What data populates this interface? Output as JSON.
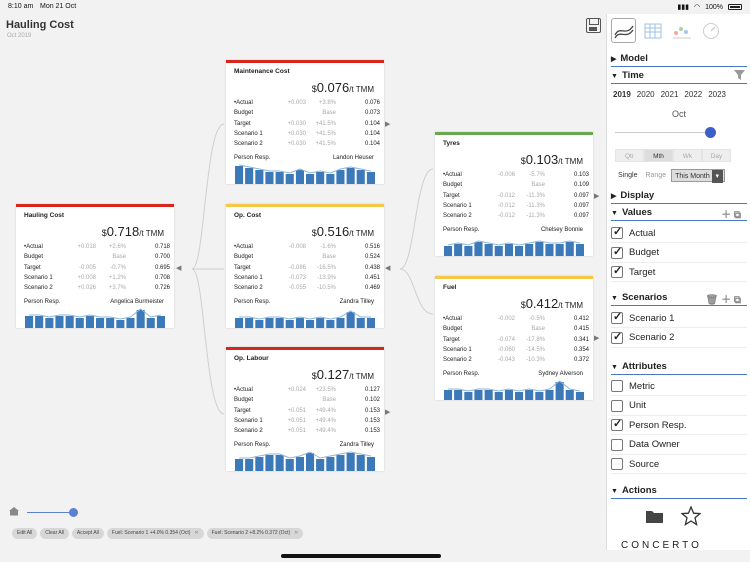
{
  "status": {
    "time": "8:10 am",
    "date": "Mon 21 Oct",
    "battery": "100%"
  },
  "header": {
    "title": "Hauling Cost",
    "subtitle": "Oct 2019"
  },
  "colors": {
    "red": "#d9261c",
    "yellow": "#f5c84a",
    "green": "#6aa84f",
    "spark": "#3b79b8",
    "accent": "#4a78c8"
  },
  "cards": [
    {
      "id": "hauling",
      "name": "Hauling Cost",
      "cur": "$",
      "value": "0.718",
      "unit": "/t TMM",
      "color": "#d9261c",
      "rows": [
        {
          "label": "Actual",
          "d1": "+0.018",
          "d2": "+2.6%",
          "v": "0.718"
        },
        {
          "label": "Budget",
          "d1": "",
          "d2": "Base",
          "v": "0.700"
        },
        {
          "label": "Target",
          "d1": "-0.005",
          "d2": "-0.7%",
          "v": "0.695"
        },
        {
          "label": "Scenario 1",
          "d1": "+0.008",
          "d2": "+1.2%",
          "v": "0.708"
        },
        {
          "label": "Scenario 2",
          "d1": "+0.026",
          "d2": "+3.7%",
          "v": "0.726"
        }
      ],
      "resp_label": "Person Resp.",
      "resp": "Angelica Burmeister",
      "spark": [
        6,
        6,
        5,
        6,
        6,
        5,
        6,
        5,
        5,
        4,
        5,
        9,
        5,
        6
      ]
    },
    {
      "id": "maintenance",
      "name": "Maintenance Cost",
      "cur": "$",
      "value": "0.076",
      "unit": "/t TMM",
      "color": "#d9261c",
      "rows": [
        {
          "label": "Actual",
          "d1": "+0.003",
          "d2": "+3.8%",
          "v": "0.076"
        },
        {
          "label": "Budget",
          "d1": "",
          "d2": "Base",
          "v": "0.073"
        },
        {
          "label": "Target",
          "d1": "+0.030",
          "d2": "+41.5%",
          "v": "0.104"
        },
        {
          "label": "Scenario 1",
          "d1": "+0.030",
          "d2": "+41.5%",
          "v": "0.104"
        },
        {
          "label": "Scenario 2",
          "d1": "+0.030",
          "d2": "+41.5%",
          "v": "0.104"
        }
      ],
      "resp_label": "Person Resp.",
      "resp": "Landon Heuser",
      "spark": [
        9,
        8,
        7,
        6,
        6,
        5,
        7,
        5,
        6,
        5,
        7,
        8,
        7,
        6
      ]
    },
    {
      "id": "opcost",
      "name": "Op. Cost",
      "cur": "$",
      "value": "0.516",
      "unit": "/t TMM",
      "color": "#f5c84a",
      "rows": [
        {
          "label": "Actual",
          "d1": "-0.008",
          "d2": "-1.6%",
          "v": "0.516"
        },
        {
          "label": "Budget",
          "d1": "",
          "d2": "Base",
          "v": "0.524"
        },
        {
          "label": "Target",
          "d1": "-0.086",
          "d2": "-16.5%",
          "v": "0.438"
        },
        {
          "label": "Scenario 1",
          "d1": "-0.073",
          "d2": "-13.9%",
          "v": "0.451"
        },
        {
          "label": "Scenario 2",
          "d1": "-0.055",
          "d2": "-10.5%",
          "v": "0.469"
        }
      ],
      "resp_label": "Person Resp.",
      "resp": "Zandra Tilley",
      "spark": [
        5,
        5,
        4,
        5,
        5,
        4,
        5,
        4,
        5,
        4,
        5,
        8,
        5,
        5
      ]
    },
    {
      "id": "oplabour",
      "name": "Op. Labour",
      "cur": "$",
      "value": "0.127",
      "unit": "/t TMM",
      "color": "#d9261c",
      "rows": [
        {
          "label": "Actual",
          "d1": "+0.024",
          "d2": "+23.5%",
          "v": "0.127"
        },
        {
          "label": "Budget",
          "d1": "",
          "d2": "Base",
          "v": "0.102"
        },
        {
          "label": "Target",
          "d1": "+0.051",
          "d2": "+49.4%",
          "v": "0.153"
        },
        {
          "label": "Scenario 1",
          "d1": "+0.051",
          "d2": "+49.4%",
          "v": "0.153"
        },
        {
          "label": "Scenario 2",
          "d1": "+0.051",
          "d2": "+49.4%",
          "v": "0.153"
        }
      ],
      "resp_label": "Person Resp.",
      "resp": "Zandra Tilley",
      "spark": [
        6,
        6,
        7,
        8,
        8,
        6,
        7,
        9,
        6,
        7,
        8,
        9,
        8,
        7
      ]
    },
    {
      "id": "tyres",
      "name": "Tyres",
      "cur": "$",
      "value": "0.103",
      "unit": "/t TMM",
      "color": "#6aa84f",
      "rows": [
        {
          "label": "Actual",
          "d1": "-0.006",
          "d2": "-5.7%",
          "v": "0.103"
        },
        {
          "label": "Budget",
          "d1": "",
          "d2": "Base",
          "v": "0.109"
        },
        {
          "label": "Target",
          "d1": "-0.012",
          "d2": "-11.3%",
          "v": "0.097"
        },
        {
          "label": "Scenario 1",
          "d1": "-0.012",
          "d2": "-11.3%",
          "v": "0.097"
        },
        {
          "label": "Scenario 2",
          "d1": "-0.012",
          "d2": "-11.3%",
          "v": "0.097"
        }
      ],
      "resp_label": "Person Resp.",
      "resp": "Chelsey Bonnie",
      "spark": [
        5,
        6,
        5,
        7,
        6,
        5,
        6,
        5,
        6,
        7,
        6,
        6,
        7,
        6
      ]
    },
    {
      "id": "fuel",
      "name": "Fuel",
      "cur": "$",
      "value": "0.412",
      "unit": "/t TMM",
      "color": "#f5c84a",
      "rows": [
        {
          "label": "Actual",
          "d1": "-0.002",
          "d2": "-0.5%",
          "v": "0.412"
        },
        {
          "label": "Budget",
          "d1": "",
          "d2": "Base",
          "v": "0.415"
        },
        {
          "label": "Target",
          "d1": "-0.074",
          "d2": "-17.8%",
          "v": "0.341"
        },
        {
          "label": "Scenario 1",
          "d1": "-0.060",
          "d2": "-14.5%",
          "v": "0.354"
        },
        {
          "label": "Scenario 2",
          "d1": "-0.043",
          "d2": "-10.3%",
          "v": "0.372"
        }
      ],
      "resp_label": "Person Resp.",
      "resp": "Sydney Alverson",
      "spark": [
        5,
        5,
        4,
        5,
        5,
        4,
        5,
        4,
        5,
        4,
        5,
        9,
        5,
        4
      ]
    }
  ],
  "chips": [
    {
      "label": "Edit All"
    },
    {
      "label": "Clear All"
    },
    {
      "label": "Accept All"
    },
    {
      "label": "Fuel: Scenario 1 +4.0% 0.354 (Oct)",
      "closable": true
    },
    {
      "label": "Fuel: Scenario 2 +8.2% 0.372 (Oct)",
      "closable": true
    }
  ],
  "panel": {
    "sections": {
      "model": "Model",
      "time": "Time",
      "display": "Display",
      "values": "Values",
      "scenarios": "Scenarios",
      "attributes": "Attributes",
      "actions": "Actions"
    },
    "years": [
      "2019",
      "2020",
      "2021",
      "2022",
      "2023"
    ],
    "month": "Oct",
    "period": [
      "Qtr",
      "Mth",
      "Wk",
      "Day"
    ],
    "mode": {
      "single": "Single",
      "range": "Range",
      "selected": "This Month"
    },
    "values": [
      {
        "label": "Actual",
        "on": true
      },
      {
        "label": "Budget",
        "on": true
      },
      {
        "label": "Target",
        "on": true
      }
    ],
    "scenarios": [
      {
        "label": "Scenario 1",
        "on": true
      },
      {
        "label": "Scenario 2",
        "on": true
      }
    ],
    "attributes": [
      {
        "label": "Metric",
        "on": false
      },
      {
        "label": "Unit",
        "on": false
      },
      {
        "label": "Person Resp.",
        "on": true
      },
      {
        "label": "Data Owner",
        "on": false
      },
      {
        "label": "Source",
        "on": false
      }
    ],
    "logo": "CONCERTO"
  }
}
